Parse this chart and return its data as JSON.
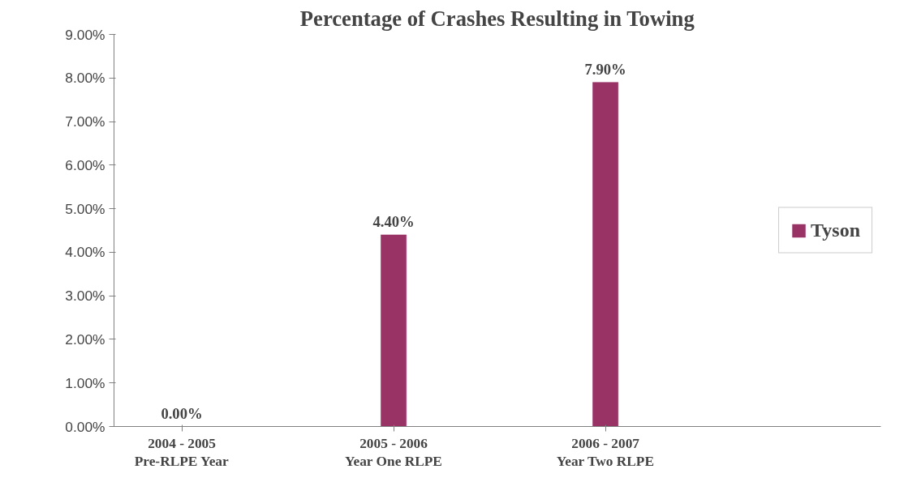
{
  "chart_data": {
    "type": "bar",
    "title": "Percentage of Crashes Resulting in Towing",
    "categories": [
      "2004 - 2005\nPre-RLPE Year",
      "2005 - 2006\nYear One RLPE",
      "2006 - 2007\nYear Two RLPE"
    ],
    "series": [
      {
        "name": "Tyson",
        "color": "#993366",
        "values": [
          0,
          4.4,
          7.9
        ],
        "value_labels": [
          "0.00%",
          "4.40%",
          "7.90%"
        ]
      }
    ],
    "ylim": [
      0,
      9
    ],
    "yticks": [
      {
        "value": 0,
        "label": "0.00%"
      },
      {
        "value": 1,
        "label": "1.00%"
      },
      {
        "value": 2,
        "label": "2.00%"
      },
      {
        "value": 3,
        "label": "3.00%"
      },
      {
        "value": 4,
        "label": "4.00%"
      },
      {
        "value": 5,
        "label": "5.00%"
      },
      {
        "value": 6,
        "label": "6.00%"
      },
      {
        "value": 7,
        "label": "7.00%"
      },
      {
        "value": 8,
        "label": "8.00%"
      },
      {
        "value": 9,
        "label": "9.00%"
      }
    ],
    "grid": false,
    "legend": "right"
  }
}
